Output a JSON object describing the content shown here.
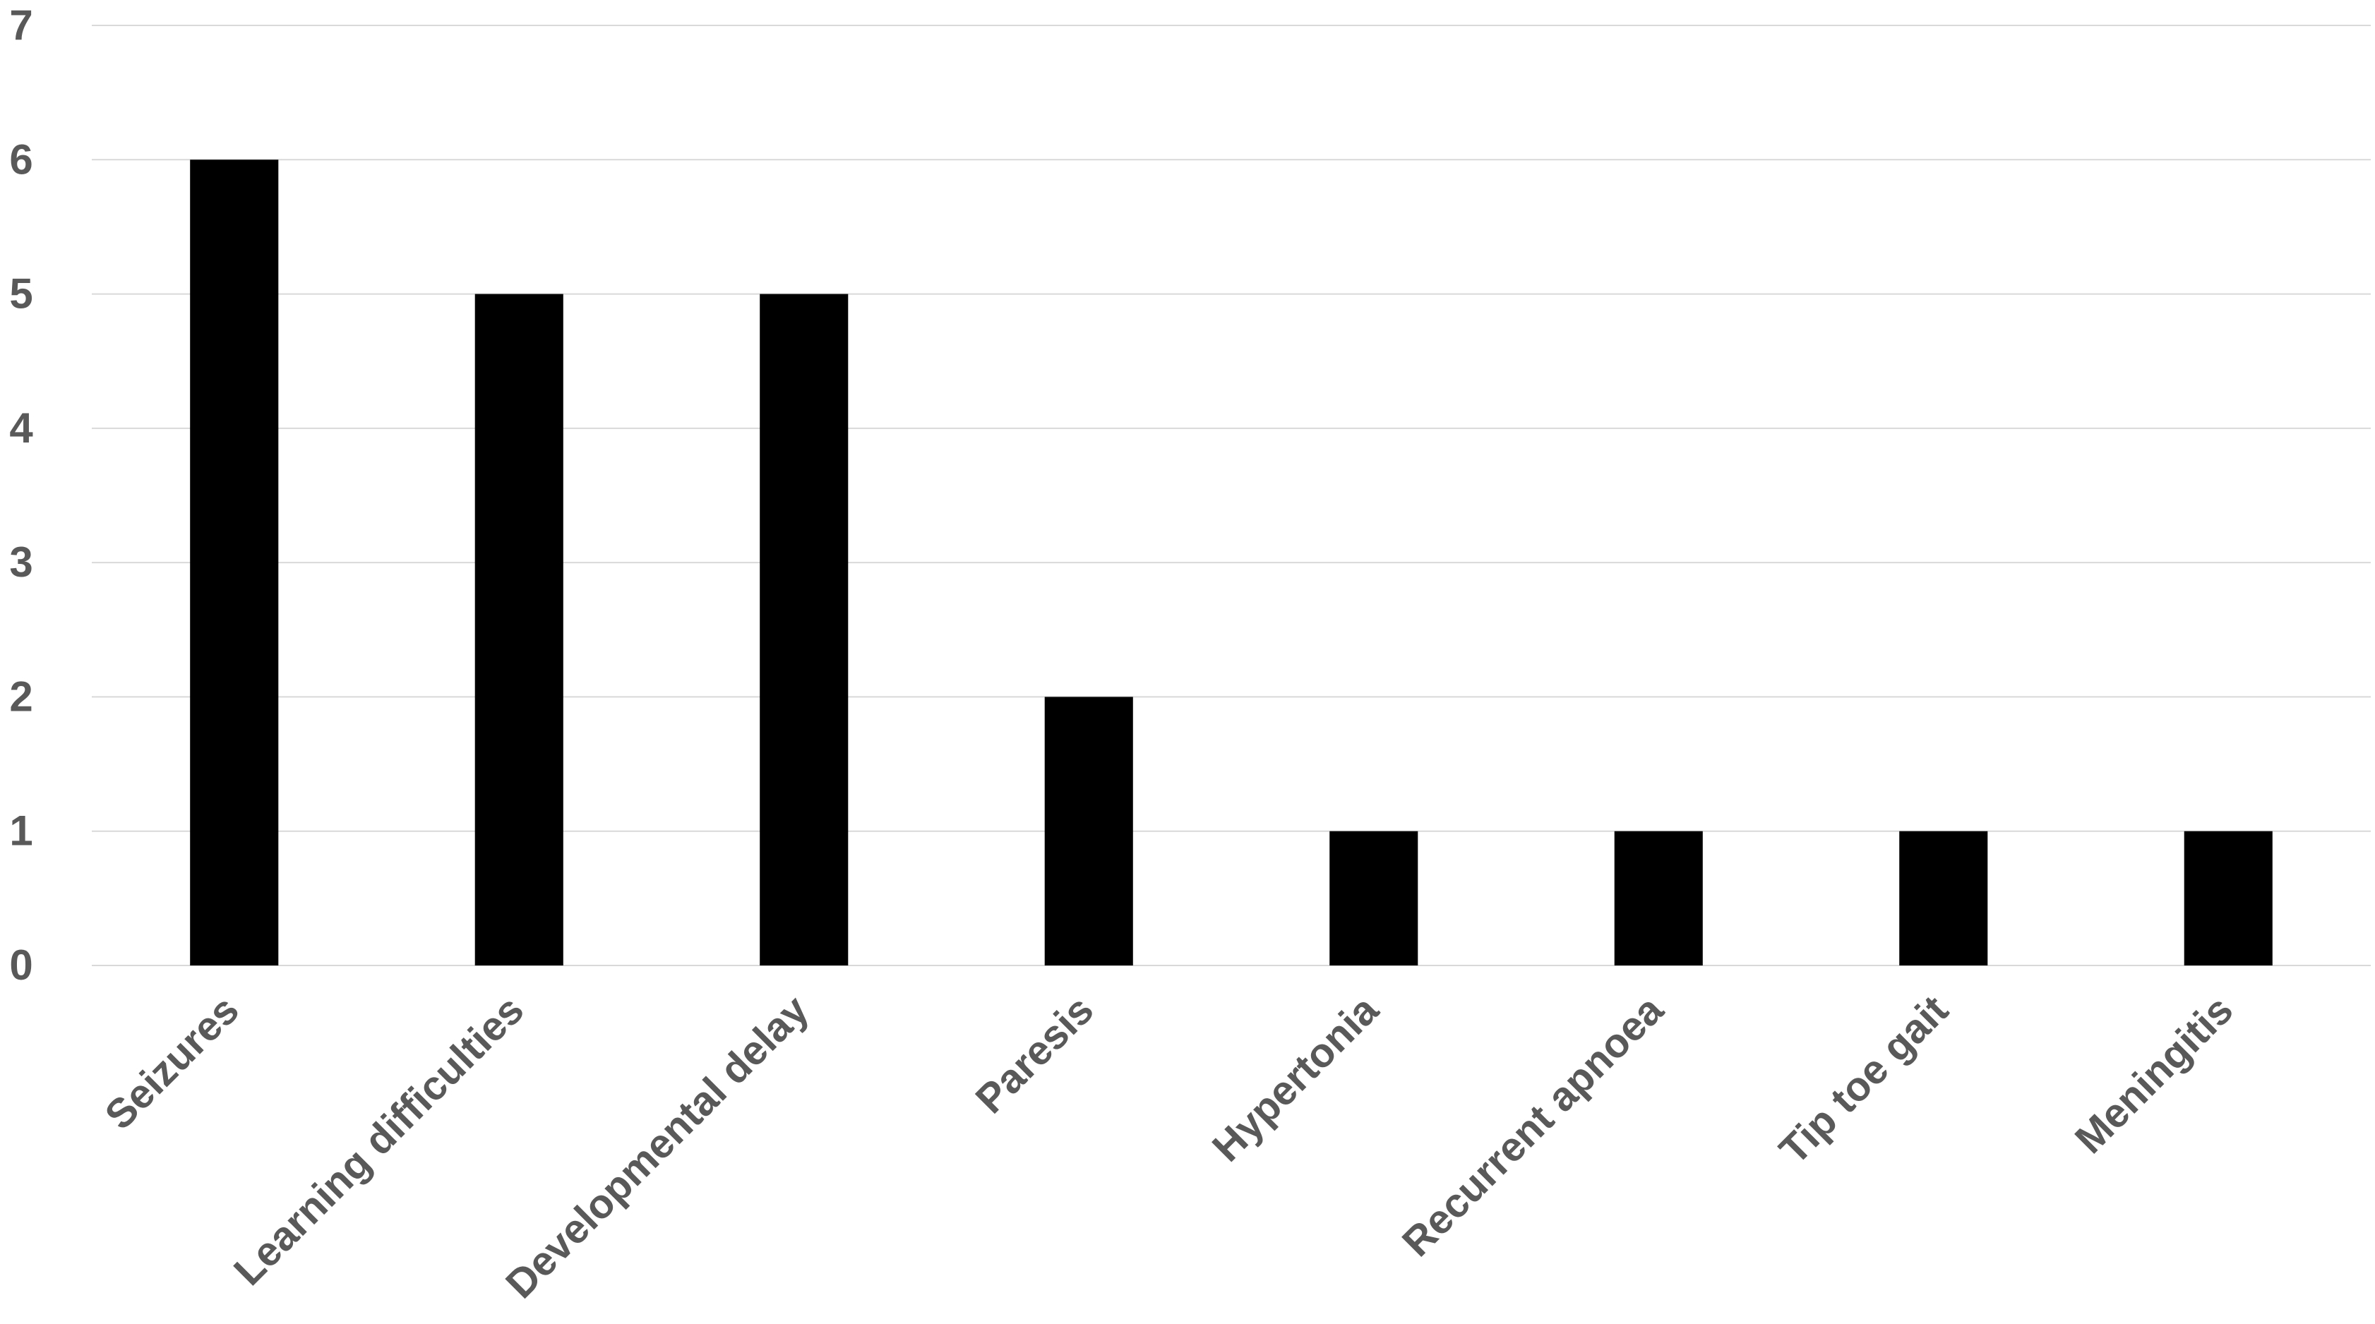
{
  "chart_data": {
    "type": "bar",
    "title": "",
    "xlabel": "",
    "ylabel": "",
    "categories": [
      "Seizures",
      "Learning difficulties",
      "Developmental delay",
      "Paresis",
      "Hypertonia",
      "Recurrent apnoea",
      "Tip toe gait",
      "Meningitis"
    ],
    "values": [
      6,
      5,
      5,
      2,
      1,
      1,
      1,
      1
    ],
    "ylim": [
      0,
      7
    ],
    "yticks": [
      "0",
      "1",
      "2",
      "3",
      "4",
      "5",
      "6",
      "7"
    ],
    "grid": true,
    "legend": "none",
    "colors": {
      "bar": "#000000",
      "grid": "#d9d9d9",
      "text": "#595959"
    }
  }
}
